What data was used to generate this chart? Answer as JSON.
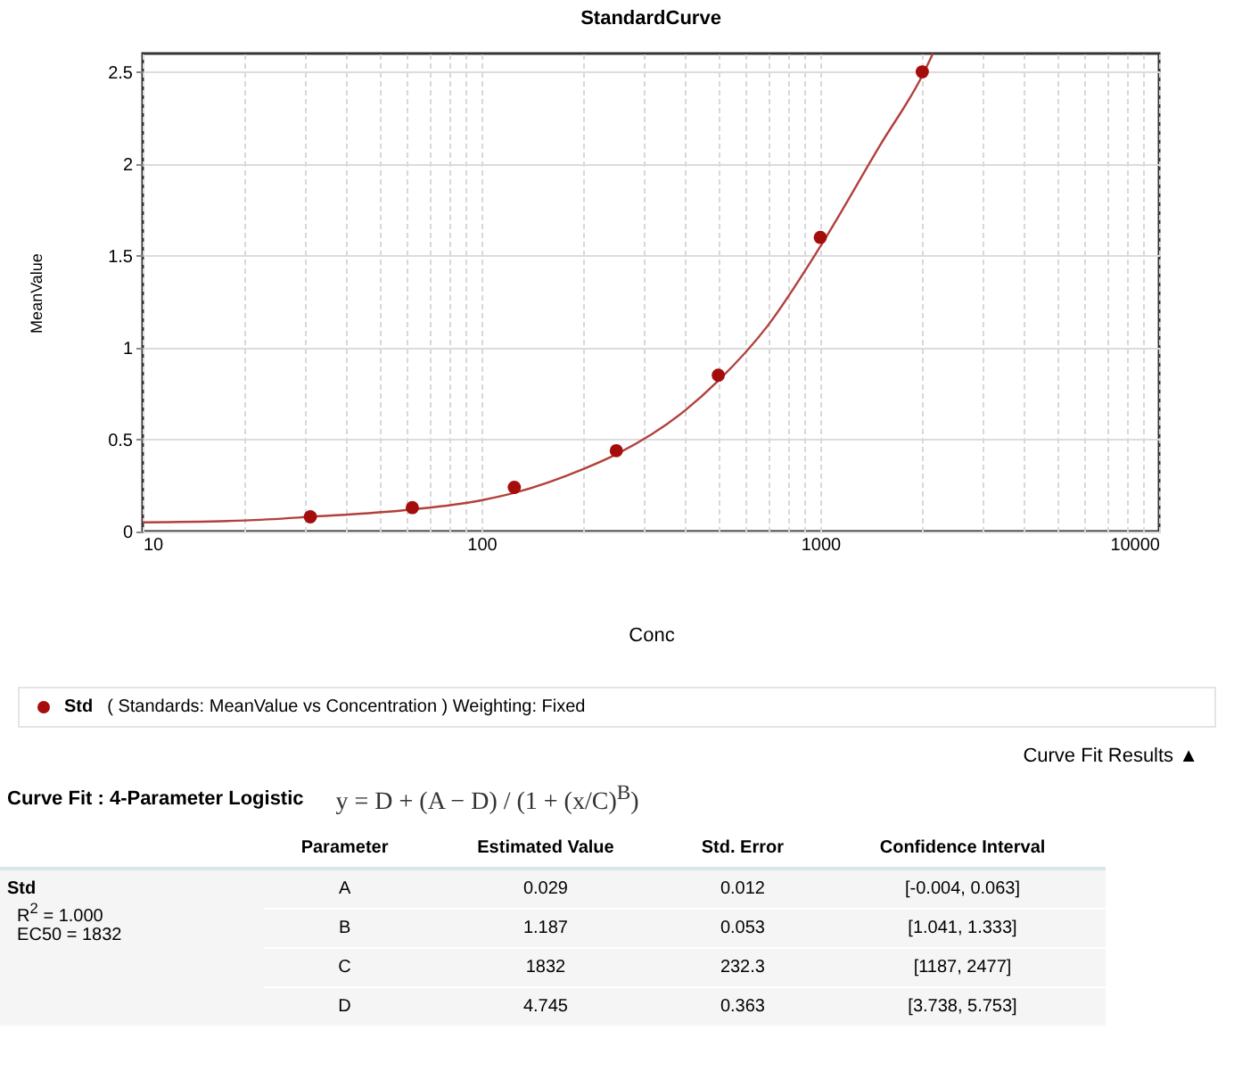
{
  "chart_data": {
    "type": "scatter",
    "title": "StandardCurve",
    "xlabel": "Conc",
    "ylabel": "MeanValue",
    "log": "x",
    "grid": true,
    "legend": "bottom",
    "xlim": [
      10,
      10000
    ],
    "xticks": [
      10,
      {
        "value": 20,
        "label": null
      },
      {
        "value": 30,
        "label": null
      },
      {
        "value": 40,
        "label": null
      },
      {
        "value": 50,
        "label": null
      },
      {
        "value": 60,
        "label": null
      },
      {
        "value": 70,
        "label": null
      },
      {
        "value": 80,
        "label": null
      },
      {
        "value": 90,
        "label": null
      },
      100,
      {
        "value": 200,
        "label": null
      },
      {
        "value": 300,
        "label": null
      },
      {
        "value": 400,
        "label": null
      },
      {
        "value": 500,
        "label": null
      },
      {
        "value": 600,
        "label": null
      },
      {
        "value": 700,
        "label": null
      },
      {
        "value": 800,
        "label": null
      },
      {
        "value": 900,
        "label": null
      },
      1000,
      {
        "value": 2000,
        "label": null
      },
      {
        "value": 3000,
        "label": null
      },
      {
        "value": 4000,
        "label": null
      },
      {
        "value": 5000,
        "label": null
      },
      {
        "value": 6000,
        "label": null
      },
      {
        "value": 7000,
        "label": null
      },
      {
        "value": 8000,
        "label": null
      },
      {
        "value": 9000,
        "label": null
      },
      10000
    ],
    "ylim": [
      0,
      2.6
    ],
    "yticks": [
      0,
      0.5,
      1,
      1.5,
      2,
      2.5
    ],
    "series": [
      {
        "type": "line",
        "color": "#b3403c",
        "marker": "none",
        "x": [
          10,
          20,
          31.25,
          62.5,
          100,
          125,
          200,
          250,
          400,
          500,
          700,
          1000,
          1500,
          2000,
          2150
        ],
        "values": [
          0.05,
          0.06,
          0.08,
          0.12,
          0.17,
          0.21,
          0.34,
          0.42,
          0.66,
          0.82,
          1.12,
          1.55,
          2.1,
          2.48,
          2.6
        ]
      },
      {
        "name": "Std",
        "color": "#a50d0d",
        "marker": "circle",
        "x": [
          31.25,
          62.5,
          125,
          250,
          500,
          1000,
          2000
        ],
        "values": [
          0.08,
          0.13,
          0.24,
          0.44,
          0.85,
          1.6,
          2.5
        ]
      }
    ],
    "annotations": [
      "( Standards: MeanValue vs Concentration )  Weighting: Fixed",
      "Curve Fit Results ▲",
      "Curve Fit : 4-Parameter Logistic",
      "y =  D  +  (A − D) / (1 + (x/C)$^{B}$)",
      "Parameter",
      "Estimated Value",
      "Std. Error",
      "Confidence Interval",
      "Std",
      "R$^{2}$ = 1.000",
      "EC50 = 1832",
      "A",
      "0.029",
      "0.012",
      "[-0.004, 0.063]",
      "B",
      "1.187",
      "0.053",
      "[1.041, 1.333]",
      "C",
      "1832",
      "232.3",
      "[1187, 2477]",
      "D",
      "4.745",
      "0.363",
      "[3.738, 5.753]"
    ]
  }
}
